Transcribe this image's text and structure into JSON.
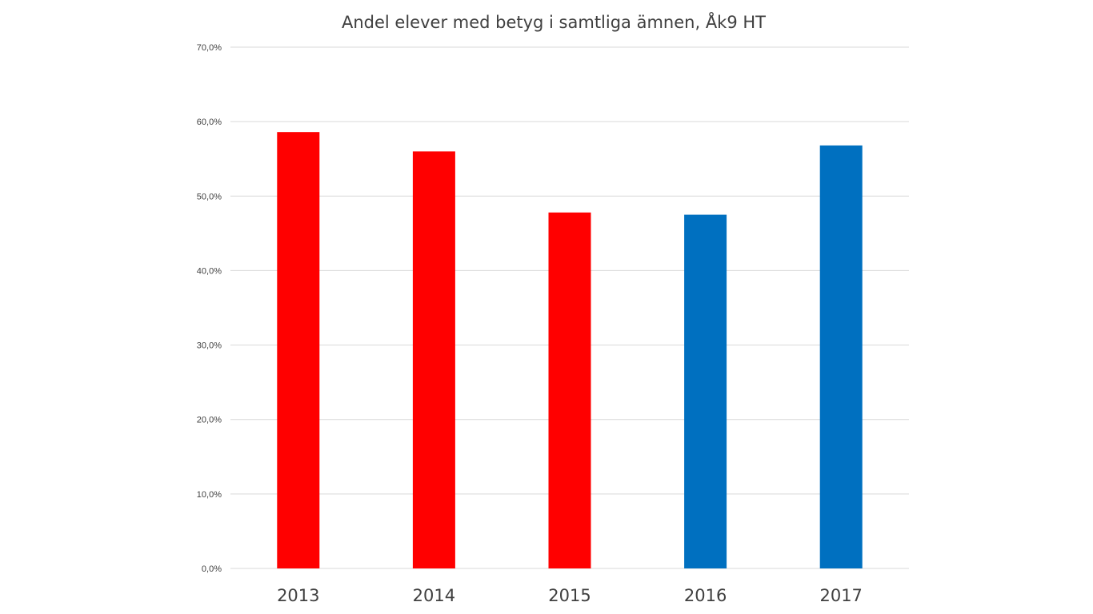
{
  "chart_data": {
    "type": "bar",
    "title": "Andel elever med betyg i samtliga ämnen, Åk9 HT",
    "xlabel": "",
    "ylabel": "",
    "categories": [
      "2013",
      "2014",
      "2015",
      "2016",
      "2017"
    ],
    "values": [
      58.6,
      56.0,
      47.8,
      47.5,
      56.8
    ],
    "bar_colors": [
      "#ff0000",
      "#ff0000",
      "#ff0000",
      "#0070c0",
      "#0070c0"
    ],
    "ylim": [
      0,
      70
    ],
    "yticks": [
      0,
      10,
      20,
      30,
      40,
      50,
      60,
      70
    ],
    "ytick_labels": [
      "0,0%",
      "10,0%",
      "20,0%",
      "30,0%",
      "40,0%",
      "50,0%",
      "60,0%",
      "70,0%"
    ],
    "grid": true,
    "legend": "none"
  }
}
